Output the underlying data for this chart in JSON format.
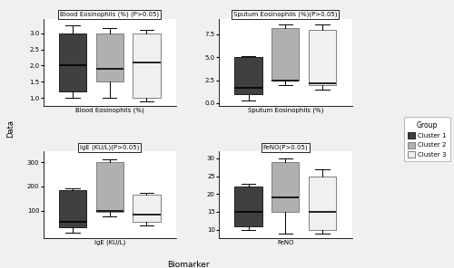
{
  "panels": [
    {
      "title": "Blood Eosinophils (%) (P>0.05)",
      "xlabel": "Blood Eosinophils (%)",
      "ylim": [
        0.75,
        3.45
      ],
      "yticks": [
        1.0,
        1.5,
        2.0,
        2.5,
        3.0
      ],
      "clusters": [
        {
          "q1": 1.2,
          "median": 2.0,
          "q3": 3.0,
          "whislo": 1.0,
          "whishi": 3.25
        },
        {
          "q1": 1.5,
          "median": 1.9,
          "q3": 3.0,
          "whislo": 1.0,
          "whishi": 3.15
        },
        {
          "q1": 1.0,
          "median": 2.1,
          "q3": 3.0,
          "whislo": 0.9,
          "whishi": 3.1
        }
      ]
    },
    {
      "title": "Sputum Eosinophils (%)(P>0.05)",
      "xlabel": "Sputum Eosinophils (%)",
      "ylim": [
        -0.3,
        9.2
      ],
      "yticks": [
        0.0,
        2.5,
        5.0,
        7.5
      ],
      "clusters": [
        {
          "q1": 1.0,
          "median": 1.7,
          "q3": 5.0,
          "whislo": 0.3,
          "whishi": 5.1
        },
        {
          "q1": 2.5,
          "median": 2.5,
          "q3": 8.2,
          "whislo": 2.0,
          "whishi": 8.6
        },
        {
          "q1": 2.0,
          "median": 2.2,
          "q3": 8.0,
          "whislo": 1.5,
          "whishi": 8.6
        }
      ]
    },
    {
      "title": "IgE (KU/L)(P>0.05)",
      "xlabel": "IgE (KU/L)",
      "ylim": [
        -15,
        345
      ],
      "yticks": [
        100,
        200,
        300
      ],
      "clusters": [
        {
          "q1": 30,
          "median": 55,
          "q3": 185,
          "whislo": 10,
          "whishi": 192
        },
        {
          "q1": 95,
          "median": 100,
          "q3": 300,
          "whislo": 75,
          "whishi": 310
        },
        {
          "q1": 55,
          "median": 82,
          "q3": 165,
          "whislo": 40,
          "whishi": 172
        }
      ]
    },
    {
      "title": "FeNO(P>0.05)",
      "xlabel": "FeNO",
      "ylim": [
        7.5,
        32
      ],
      "yticks": [
        10,
        15,
        20,
        25,
        30
      ],
      "clusters": [
        {
          "q1": 11,
          "median": 15,
          "q3": 22,
          "whislo": 10,
          "whishi": 23
        },
        {
          "q1": 15,
          "median": 19,
          "q3": 29,
          "whislo": 9,
          "whishi": 30
        },
        {
          "q1": 10,
          "median": 15,
          "q3": 25,
          "whislo": 9,
          "whishi": 27
        }
      ]
    }
  ],
  "colors": [
    "#404040",
    "#b0b0b0",
    "#f0f0f0"
  ],
  "edge_colors": [
    "#202020",
    "#808080",
    "#808080"
  ],
  "legend_labels": [
    "Cluster 1",
    "Cluster 2",
    "Cluster 3"
  ],
  "ylabel": "Data",
  "xlabel_main": "Biomarker",
  "background_color": "#f0f0f0",
  "panel_background": "#ffffff"
}
